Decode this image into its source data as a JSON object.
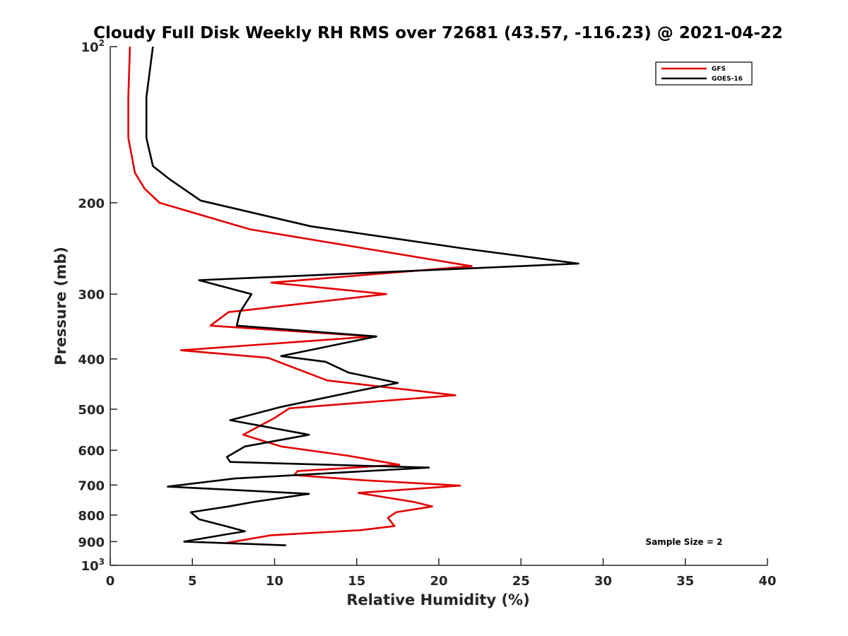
{
  "chart_data": {
    "type": "line",
    "title": "Cloudy Full Disk Weekly RH RMS over 72681 (43.57, -116.23) @ 2021-04-22",
    "xlabel": "Relative Humidity (%)",
    "ylabel": "Pressure (mb)",
    "xlim": [
      0,
      40
    ],
    "ylim": [
      100,
      1000
    ],
    "yscale": "log",
    "yreversed": true,
    "xticks": [
      0,
      5,
      10,
      15,
      20,
      25,
      30,
      35,
      40
    ],
    "yticks": [
      {
        "value": 100,
        "base": "10",
        "exp": "2"
      },
      {
        "value": 200,
        "label": "200"
      },
      {
        "value": 300,
        "label": "300"
      },
      {
        "value": 400,
        "label": "400"
      },
      {
        "value": 500,
        "label": "500"
      },
      {
        "value": 600,
        "label": "600"
      },
      {
        "value": 700,
        "label": "700"
      },
      {
        "value": 800,
        "label": "800"
      },
      {
        "value": 900,
        "label": "900"
      },
      {
        "value": 1000,
        "base": "10",
        "exp": "3"
      }
    ],
    "grid": false,
    "legend_position": "top-right",
    "annotation": "Sample Size = 2",
    "series": [
      {
        "name": "GFS",
        "color": "#e30000",
        "points": [
          [
            1.2,
            100
          ],
          [
            1.1,
            125
          ],
          [
            1.1,
            150
          ],
          [
            1.5,
            175
          ],
          [
            2.1,
            188
          ],
          [
            3.0,
            200
          ],
          [
            8.5,
            225
          ],
          [
            22.0,
            265
          ],
          [
            9.8,
            285
          ],
          [
            16.8,
            300
          ],
          [
            7.2,
            325
          ],
          [
            6.1,
            345
          ],
          [
            16.0,
            362
          ],
          [
            4.3,
            385
          ],
          [
            9.6,
            398
          ],
          [
            13.2,
            440
          ],
          [
            21.0,
            470
          ],
          [
            10.9,
            498
          ],
          [
            10.0,
            520
          ],
          [
            8.1,
            560
          ],
          [
            10.4,
            590
          ],
          [
            14.5,
            615
          ],
          [
            17.6,
            640
          ],
          [
            11.4,
            658
          ],
          [
            11.2,
            670
          ],
          [
            15.3,
            685
          ],
          [
            21.3,
            702
          ],
          [
            15.1,
            725
          ],
          [
            18.5,
            755
          ],
          [
            19.6,
            770
          ],
          [
            17.4,
            790
          ],
          [
            16.9,
            810
          ],
          [
            17.3,
            840
          ],
          [
            15.3,
            855
          ],
          [
            9.8,
            875
          ],
          [
            7.1,
            905
          ]
        ]
      },
      {
        "name": "GOES-16",
        "color": "#000000",
        "points": [
          [
            2.6,
            100
          ],
          [
            2.2,
            125
          ],
          [
            2.2,
            150
          ],
          [
            2.6,
            170
          ],
          [
            3.6,
            180
          ],
          [
            5.5,
            198
          ],
          [
            12.2,
            222
          ],
          [
            21.5,
            245
          ],
          [
            28.5,
            262
          ],
          [
            5.4,
            282
          ],
          [
            8.6,
            300
          ],
          [
            7.9,
            325
          ],
          [
            7.7,
            345
          ],
          [
            16.2,
            362
          ],
          [
            10.4,
            395
          ],
          [
            13.1,
            405
          ],
          [
            14.5,
            425
          ],
          [
            17.5,
            445
          ],
          [
            15.2,
            460
          ],
          [
            10.4,
            495
          ],
          [
            7.3,
            525
          ],
          [
            12.1,
            560
          ],
          [
            8.2,
            590
          ],
          [
            7.1,
            618
          ],
          [
            7.3,
            632
          ],
          [
            19.4,
            648
          ],
          [
            7.6,
            680
          ],
          [
            3.5,
            705
          ],
          [
            12.1,
            728
          ],
          [
            8.7,
            755
          ],
          [
            7.2,
            770
          ],
          [
            4.9,
            790
          ],
          [
            5.4,
            815
          ],
          [
            7.0,
            840
          ],
          [
            8.2,
            860
          ],
          [
            7.2,
            870
          ],
          [
            4.5,
            900
          ],
          [
            10.7,
            915
          ]
        ]
      }
    ]
  }
}
